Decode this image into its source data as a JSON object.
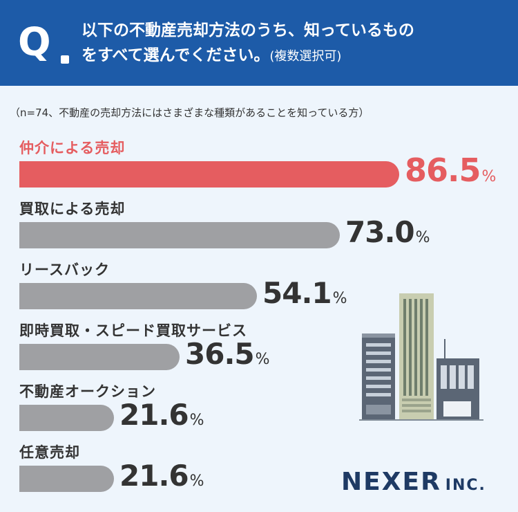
{
  "header": {
    "q_letter": "Q",
    "question_line1": "以下の不動産売却方法のうち、知っているもの",
    "question_line2": "をすべて選んでください。",
    "question_note": "(複数選択可)"
  },
  "sample_note": "（n=74、不動産の売却方法にはさまざまな種類があることを知っている方）",
  "chart_data": {
    "type": "bar",
    "orientation": "horizontal",
    "categories": [
      "仲介による売却",
      "買取による売却",
      "リースバック",
      "即時買取・スピード買取サービス",
      "不動産オークション",
      "任意売却"
    ],
    "values": [
      86.5,
      73.0,
      54.1,
      36.5,
      21.6,
      21.6
    ],
    "value_labels": [
      "86.5",
      "73.0",
      "54.1",
      "36.5",
      "21.6",
      "21.6"
    ],
    "unit": "%",
    "highlight_index": 0,
    "xlim": [
      0,
      100
    ],
    "colors": {
      "highlight": "#e55d60",
      "default": "#9fa0a3"
    }
  },
  "logo": {
    "name": "NEXER",
    "suffix": "INC."
  },
  "icons": {
    "illustration": "office-buildings-icon"
  }
}
